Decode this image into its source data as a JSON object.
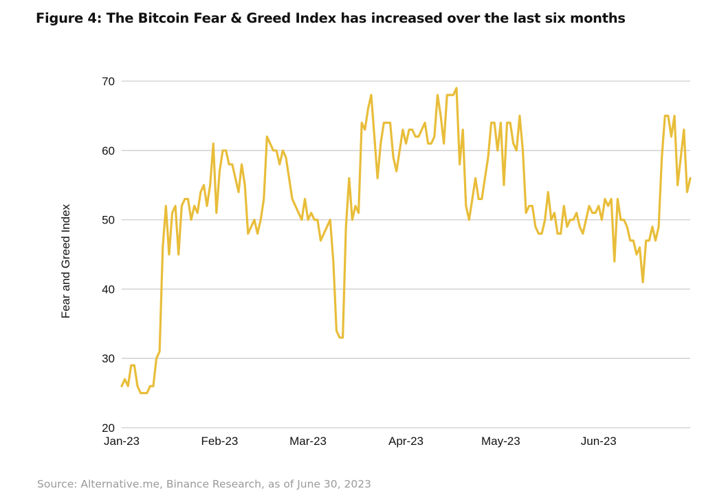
{
  "figure": {
    "title": "Figure 4: The Bitcoin Fear & Greed Index has increased over the last six months",
    "source": "Source: Alternative.me, Binance Research, as of June 30, 2023"
  },
  "chart_data": {
    "type": "line",
    "title": "Figure 4: The Bitcoin Fear & Greed Index has increased over the last six months",
    "xlabel": "",
    "ylabel": "Fear and Greed Index",
    "ylim": [
      20,
      70
    ],
    "yticks": [
      20,
      30,
      40,
      50,
      60,
      70
    ],
    "xticks": [
      {
        "label": "Jan-23",
        "day": 0
      },
      {
        "label": "Feb-23",
        "day": 31
      },
      {
        "label": "Mar-23",
        "day": 59
      },
      {
        "label": "Apr-23",
        "day": 90
      },
      {
        "label": "May-23",
        "day": 120
      },
      {
        "label": "Jun-23",
        "day": 151
      }
    ],
    "x_range_days": [
      0,
      180
    ],
    "grid": true,
    "legend": "none",
    "line_color": "#E8BD3A",
    "x_start": "2023-01-01",
    "x_end": "2023-06-30",
    "series": [
      {
        "name": "Fear and Greed Index",
        "values": [
          26,
          27,
          26,
          29,
          29,
          26,
          25,
          25,
          25,
          26,
          26,
          30,
          31,
          46,
          52,
          45,
          51,
          52,
          45,
          52,
          53,
          53,
          50,
          52,
          51,
          54,
          55,
          52,
          55,
          61,
          51,
          57,
          60,
          60,
          58,
          58,
          56,
          54,
          58,
          55,
          48,
          49,
          50,
          48,
          50,
          53,
          62,
          61,
          60,
          60,
          58,
          60,
          59,
          56,
          53,
          52,
          51,
          50,
          53,
          50,
          51,
          50,
          50,
          47,
          48,
          49,
          50,
          44,
          34,
          33,
          33,
          49,
          56,
          50,
          52,
          51,
          64,
          63,
          66,
          68,
          62,
          56,
          61,
          64,
          64,
          64,
          59,
          57,
          60,
          63,
          61,
          63,
          63,
          62,
          62,
          63,
          64,
          61,
          61,
          62,
          68,
          65,
          61,
          68,
          68,
          68,
          69,
          58,
          63,
          52,
          50,
          53,
          56,
          53,
          53,
          56,
          59,
          64,
          64,
          60,
          64,
          55,
          64,
          64,
          61,
          60,
          65,
          60,
          51,
          52,
          52,
          49,
          48,
          48,
          50,
          54,
          50,
          51,
          48,
          48,
          52,
          49,
          50,
          50,
          51,
          49,
          48,
          50,
          52,
          51,
          51,
          52,
          50,
          53,
          52,
          53,
          44,
          53,
          50,
          50,
          49,
          47,
          47,
          45,
          46,
          41,
          47,
          47,
          49,
          47,
          49,
          59,
          65,
          65,
          62,
          65,
          55,
          59,
          63,
          54,
          56
        ]
      }
    ]
  }
}
